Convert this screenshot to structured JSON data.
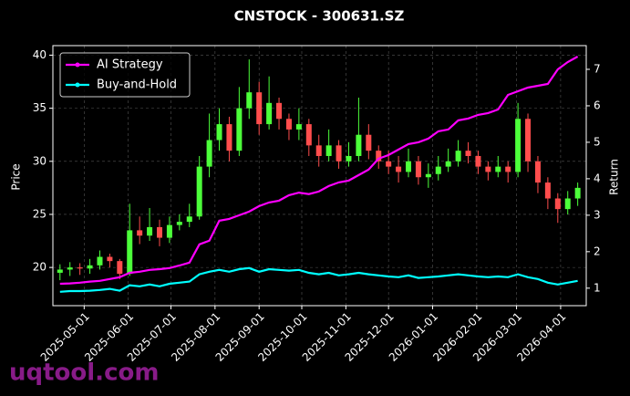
{
  "chart_data": {
    "type": "candlestick",
    "title": "CNSTOCK - 300631.SZ",
    "ylabel": "Price",
    "y2label": "Return",
    "watermark": "uqtool.com",
    "x": [
      "2025-04-14",
      "2025-04-21",
      "2025-04-28",
      "2025-05-05",
      "2025-05-12",
      "2025-05-19",
      "2025-05-26",
      "2025-06-02",
      "2025-06-09",
      "2025-06-16",
      "2025-06-23",
      "2025-06-30",
      "2025-07-07",
      "2025-07-14",
      "2025-07-21",
      "2025-07-28",
      "2025-08-04",
      "2025-08-11",
      "2025-08-18",
      "2025-08-25",
      "2025-09-01",
      "2025-09-08",
      "2025-09-15",
      "2025-09-22",
      "2025-09-29",
      "2025-10-06",
      "2025-10-13",
      "2025-10-20",
      "2025-10-27",
      "2025-11-03",
      "2025-11-10",
      "2025-11-17",
      "2025-11-24",
      "2025-12-01",
      "2025-12-08",
      "2025-12-15",
      "2025-12-22",
      "2025-12-29",
      "2026-01-05",
      "2026-01-12",
      "2026-01-19",
      "2026-01-26",
      "2026-02-02",
      "2026-02-09",
      "2026-02-16",
      "2026-02-23",
      "2026-03-02",
      "2026-03-09",
      "2026-03-16",
      "2026-03-23",
      "2026-03-30",
      "2026-04-06",
      "2026-04-13"
    ],
    "open": [
      19.5,
      19.8,
      20.0,
      19.9,
      20.2,
      21.0,
      20.6,
      19.4,
      23.5,
      23.0,
      23.8,
      22.8,
      24.0,
      24.3,
      24.8,
      29.5,
      32.0,
      33.5,
      31.0,
      35.0,
      36.5,
      33.5,
      35.5,
      34.0,
      33.0,
      33.5,
      31.5,
      30.5,
      31.5,
      30.0,
      30.5,
      32.5,
      31.0,
      30.0,
      29.5,
      29.0,
      30.0,
      28.5,
      28.8,
      29.5,
      30.0,
      31.0,
      30.5,
      29.5,
      29.0,
      29.5,
      29.0,
      34.0,
      30.0,
      28.0,
      26.5,
      25.5,
      26.5
    ],
    "high": [
      20.3,
      20.5,
      20.4,
      20.8,
      21.6,
      21.3,
      20.8,
      26.0,
      24.8,
      25.6,
      24.5,
      24.8,
      25.0,
      26.0,
      30.5,
      34.5,
      35.0,
      34.2,
      37.0,
      39.6,
      37.5,
      38.0,
      36.0,
      34.5,
      35.0,
      34.0,
      32.5,
      33.0,
      32.0,
      31.8,
      36.0,
      33.5,
      31.5,
      31.0,
      30.5,
      31.2,
      30.5,
      29.8,
      30.5,
      31.2,
      32.0,
      31.8,
      31.0,
      30.0,
      30.5,
      30.0,
      35.5,
      34.5,
      30.5,
      28.5,
      27.0,
      27.2,
      28.0
    ],
    "low": [
      18.8,
      19.2,
      19.3,
      19.4,
      19.8,
      20.0,
      18.9,
      19.2,
      22.2,
      22.5,
      22.0,
      22.3,
      23.5,
      23.8,
      24.5,
      28.5,
      31.0,
      30.0,
      30.5,
      34.0,
      32.5,
      33.0,
      33.0,
      32.0,
      32.0,
      30.5,
      29.5,
      30.0,
      29.3,
      29.5,
      30.0,
      30.2,
      29.3,
      28.8,
      28.0,
      28.5,
      27.8,
      27.5,
      28.2,
      29.0,
      29.5,
      29.8,
      28.8,
      28.2,
      28.5,
      28.0,
      28.5,
      29.0,
      27.0,
      25.5,
      24.2,
      25.0,
      25.8
    ],
    "close": [
      19.8,
      20.0,
      19.9,
      20.2,
      21.0,
      20.6,
      19.4,
      23.5,
      23.0,
      23.8,
      22.8,
      24.0,
      24.3,
      24.8,
      29.5,
      32.0,
      33.5,
      31.0,
      35.0,
      36.5,
      33.5,
      35.5,
      34.0,
      33.0,
      33.5,
      31.5,
      30.5,
      31.5,
      30.0,
      30.5,
      32.5,
      31.0,
      30.0,
      29.5,
      29.0,
      30.0,
      28.5,
      28.8,
      29.5,
      30.0,
      31.0,
      30.5,
      29.5,
      29.0,
      29.5,
      29.0,
      34.0,
      30.0,
      28.0,
      26.5,
      25.5,
      26.5,
      27.5
    ],
    "up_color": "#4cff3a",
    "down_color": "#ff4d4d",
    "series": [
      {
        "name": "AI Strategy",
        "color": "#ff00ff",
        "axis": "y2",
        "values": [
          1.12,
          1.13,
          1.15,
          1.18,
          1.2,
          1.25,
          1.3,
          1.42,
          1.45,
          1.5,
          1.52,
          1.55,
          1.62,
          1.7,
          2.2,
          2.3,
          2.85,
          2.9,
          3.0,
          3.1,
          3.25,
          3.35,
          3.4,
          3.55,
          3.62,
          3.58,
          3.65,
          3.8,
          3.9,
          3.95,
          4.1,
          4.25,
          4.55,
          4.65,
          4.8,
          4.95,
          5.0,
          5.1,
          5.3,
          5.35,
          5.6,
          5.65,
          5.75,
          5.8,
          5.9,
          6.3,
          6.4,
          6.5,
          6.55,
          6.6,
          7.0,
          7.2,
          7.35
        ]
      },
      {
        "name": "Buy-and-Hold",
        "color": "#00ffff",
        "axis": "y2",
        "values": [
          0.9,
          0.92,
          0.92,
          0.93,
          0.95,
          0.98,
          0.93,
          1.08,
          1.05,
          1.1,
          1.05,
          1.12,
          1.15,
          1.18,
          1.38,
          1.45,
          1.5,
          1.45,
          1.52,
          1.55,
          1.45,
          1.52,
          1.5,
          1.48,
          1.5,
          1.42,
          1.38,
          1.42,
          1.35,
          1.38,
          1.42,
          1.38,
          1.35,
          1.32,
          1.3,
          1.35,
          1.28,
          1.3,
          1.32,
          1.35,
          1.38,
          1.35,
          1.32,
          1.3,
          1.32,
          1.3,
          1.38,
          1.3,
          1.25,
          1.15,
          1.1,
          1.15,
          1.2
        ]
      }
    ],
    "xlim": [
      "2025-04-09",
      "2026-04-19"
    ],
    "xticks": [
      "2025-05-01",
      "2025-06-01",
      "2025-07-01",
      "2025-08-01",
      "2025-09-01",
      "2025-10-01",
      "2025-11-01",
      "2025-12-01",
      "2026-01-01",
      "2026-02-01",
      "2026-03-01",
      "2026-04-01"
    ],
    "ylim": [
      16.4,
      40.9
    ],
    "yticks": [
      20,
      25,
      30,
      35,
      40
    ],
    "y2lim": [
      0.52,
      7.65
    ],
    "y2ticks": [
      1,
      2,
      3,
      4,
      5,
      6,
      7
    ],
    "grid": true,
    "legend": "upper left"
  }
}
